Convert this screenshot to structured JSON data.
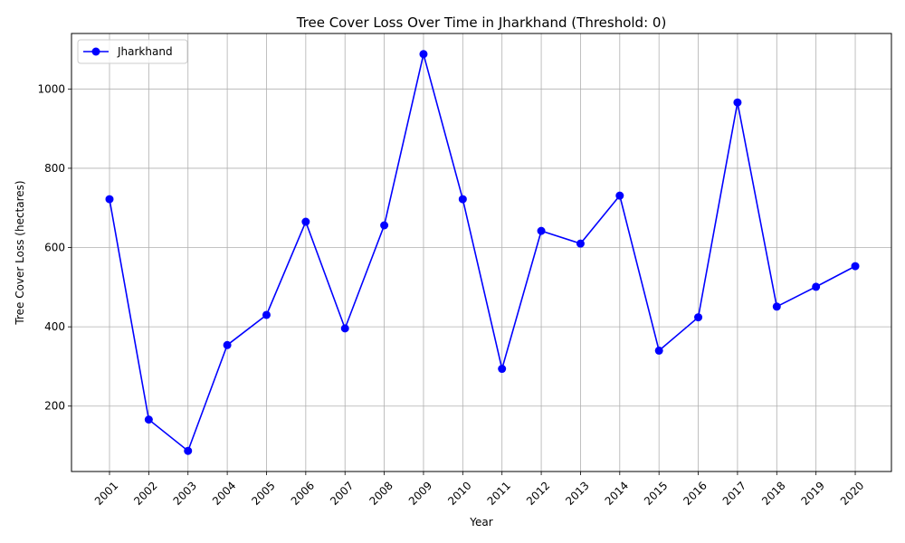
{
  "chart_data": {
    "type": "line",
    "title": "Tree Cover Loss Over Time in Jharkhand (Threshold: 0)",
    "xlabel": "Year",
    "ylabel": "Tree Cover Loss (hectares)",
    "categories": [
      "2001",
      "2002",
      "2003",
      "2004",
      "2005",
      "2006",
      "2007",
      "2008",
      "2009",
      "2010",
      "2011",
      "2012",
      "2013",
      "2014",
      "2015",
      "2016",
      "2017",
      "2018",
      "2019",
      "2020"
    ],
    "series": [
      {
        "name": "Jharkhand",
        "color": "#0000ff",
        "marker": "circle",
        "values": [
          722,
          166,
          87,
          354,
          430,
          665,
          396,
          656,
          1088,
          722,
          294,
          642,
          610,
          731,
          340,
          424,
          966,
          451,
          501,
          553
        ]
      }
    ],
    "ylim": [
      35,
      1140
    ],
    "yticks": [
      200,
      400,
      600,
      800,
      1000
    ],
    "grid": true,
    "legend_position": "top-left",
    "xtick_rotation": 45
  }
}
